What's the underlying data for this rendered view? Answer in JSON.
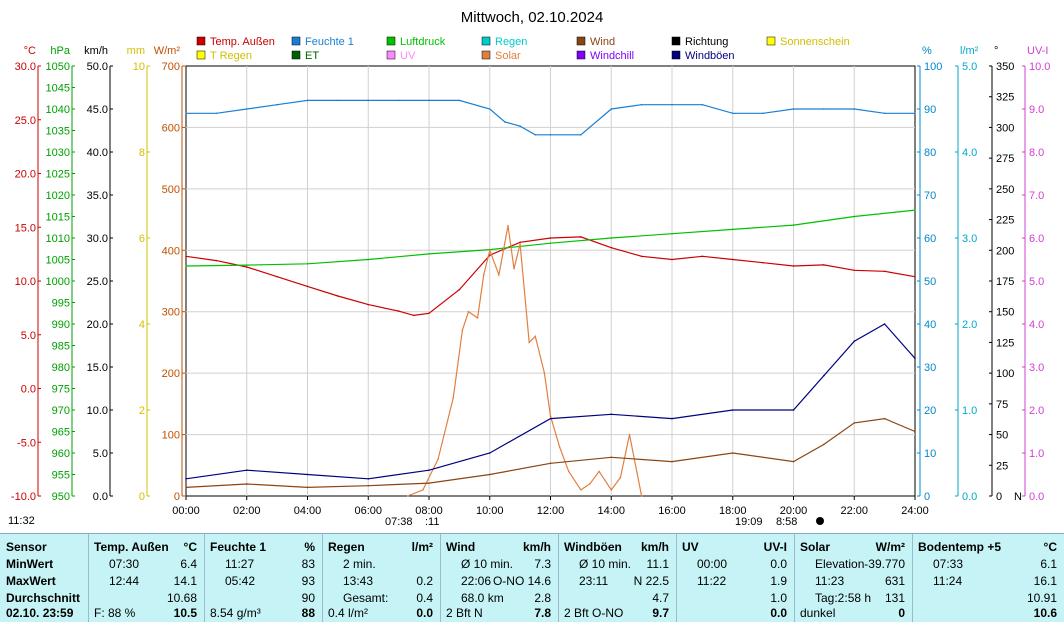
{
  "title": "Mittwoch, 02.10.2024",
  "chart_data": {
    "type": "line",
    "x_ticks": [
      "00:00",
      "02:00",
      "04:00",
      "06:00",
      "08:00",
      "10:00",
      "12:00",
      "14:00",
      "16:00",
      "18:00",
      "20:00",
      "22:00",
      "24:00"
    ],
    "axes_left": [
      {
        "unit": "°C",
        "color": "#cc0000",
        "ticks": [
          "30.0",
          "25.0",
          "20.0",
          "15.0",
          "10.0",
          "5.0",
          "0.0",
          "-5.0",
          "-10.0"
        ]
      },
      {
        "unit": "hPa",
        "color": "#00a000",
        "ticks": [
          "1050",
          "1045",
          "1040",
          "1035",
          "1030",
          "1025",
          "1020",
          "1015",
          "1010",
          "1005",
          "1000",
          "995",
          "990",
          "985",
          "980",
          "975",
          "970",
          "965",
          "960",
          "955",
          "950"
        ]
      },
      {
        "unit": "km/h",
        "color": "#000000",
        "ticks": [
          "50.0",
          "45.0",
          "40.0",
          "35.0",
          "30.0",
          "25.0",
          "20.0",
          "15.0",
          "10.0",
          "5.0",
          "0.0"
        ]
      },
      {
        "unit": "mm",
        "color": "#d4c000",
        "ticks": [
          "10",
          "8",
          "6",
          "4",
          "2",
          "0"
        ]
      },
      {
        "unit": "W/m²",
        "color": "#c05000",
        "ticks": [
          "700",
          "600",
          "500",
          "400",
          "300",
          "200",
          "100",
          "0"
        ]
      }
    ],
    "axes_right": [
      {
        "unit": "%",
        "color": "#0088cc",
        "ticks": [
          "100",
          "90",
          "80",
          "70",
          "60",
          "50",
          "40",
          "30",
          "20",
          "10",
          "0"
        ]
      },
      {
        "unit": "l/m²",
        "color": "#00aacc",
        "ticks": [
          "5.0",
          "4.0",
          "3.0",
          "2.0",
          "1.0",
          "0.0"
        ]
      },
      {
        "unit": "°",
        "color": "#000000",
        "ticks": [
          "350",
          "325",
          "300",
          "275",
          "250",
          "225",
          "200",
          "175",
          "150",
          "125",
          "100",
          "75",
          "50",
          "25",
          "0"
        ],
        "bottom_label": "N"
      },
      {
        "unit": "UV-I",
        "color": "#d040d0",
        "ticks": [
          "10.0",
          "9.0",
          "8.0",
          "7.0",
          "6.0",
          "5.0",
          "4.0",
          "3.0",
          "2.0",
          "1.0",
          "0.0"
        ]
      }
    ],
    "legend": [
      {
        "name": "Temp. Außen",
        "color": "#cc0000"
      },
      {
        "name": "Feuchte 1",
        "color": "#1a7fd4"
      },
      {
        "name": "Luftdruck",
        "color": "#00c000"
      },
      {
        "name": "Regen",
        "color": "#00cccc"
      },
      {
        "name": "Wind",
        "color": "#8b4513"
      },
      {
        "name": "Richtung",
        "color": "#000000"
      },
      {
        "name": "Sonnenschein",
        "color": "#ffff00"
      },
      {
        "name": "T Regen",
        "color": "#ffff00"
      },
      {
        "name": "ET",
        "color": "#006000"
      },
      {
        "name": "UV",
        "color": "#ff88ff"
      },
      {
        "name": "Solar",
        "color": "#e08040"
      },
      {
        "name": "Windchill",
        "color": "#8000ff"
      },
      {
        "name": "Windböen",
        "color": "#000080"
      }
    ],
    "series": [
      {
        "name": "Temp. Außen",
        "axis": "°C",
        "x": [
          0,
          1,
          2,
          3,
          4,
          5,
          6,
          7,
          7.5,
          8,
          9,
          10,
          11,
          12,
          13,
          14,
          15,
          16,
          17,
          18,
          19,
          20,
          21,
          22,
          23,
          24
        ],
        "values": [
          12.3,
          11.9,
          11.3,
          10.4,
          9.5,
          8.6,
          7.8,
          7.2,
          6.8,
          7.0,
          9.2,
          12.4,
          13.6,
          14.0,
          14.1,
          13.1,
          12.3,
          12.0,
          12.3,
          12.0,
          11.7,
          11.4,
          11.5,
          11.0,
          10.9,
          10.4
        ]
      },
      {
        "name": "Feuchte 1",
        "axis": "%",
        "x": [
          0,
          1,
          2,
          3,
          4,
          5,
          6,
          7,
          8,
          9,
          10,
          10.5,
          11,
          11.5,
          12,
          13,
          14,
          15,
          16,
          17,
          18,
          19,
          20,
          21,
          22,
          23,
          24
        ],
        "values": [
          89,
          89,
          90,
          91,
          92,
          92,
          92,
          92,
          92,
          92,
          90,
          87,
          86,
          84,
          84,
          84,
          90,
          91,
          91,
          91,
          89,
          89,
          90,
          90,
          90,
          89,
          89
        ]
      },
      {
        "name": "Luftdruck",
        "axis": "hPa",
        "x": [
          0,
          2,
          4,
          6,
          8,
          10,
          12,
          14,
          16,
          18,
          20,
          22,
          24
        ],
        "values": [
          1003.5,
          1003.7,
          1004,
          1005,
          1006.3,
          1007.3,
          1008.8,
          1010,
          1011,
          1012,
          1013,
          1015,
          1016.5
        ]
      },
      {
        "name": "Solar",
        "axis": "W/m²",
        "x": [
          7.3,
          7.8,
          8.3,
          8.8,
          9.1,
          9.3,
          9.6,
          9.8,
          10.0,
          10.3,
          10.6,
          10.8,
          11.0,
          11.3,
          11.5,
          11.8,
          12.0,
          12.3,
          12.6,
          13.0,
          13.3,
          13.6,
          14.0,
          14.3,
          14.6,
          15.0
        ],
        "values": [
          0,
          10,
          60,
          160,
          270,
          300,
          290,
          360,
          400,
          360,
          440,
          370,
          410,
          250,
          260,
          200,
          130,
          80,
          40,
          10,
          20,
          40,
          10,
          30,
          100,
          0
        ]
      },
      {
        "name": "Wind",
        "axis": "km/h",
        "x": [
          0,
          2,
          4,
          6,
          8,
          10,
          12,
          14,
          16,
          18,
          20,
          21,
          22,
          23,
          24
        ],
        "values": [
          1.0,
          1.4,
          1.0,
          1.2,
          1.5,
          2.5,
          3.8,
          4.5,
          4.0,
          5.0,
          4.0,
          6.0,
          8.5,
          9.0,
          7.5
        ]
      },
      {
        "name": "Windböen",
        "axis": "km/h",
        "x": [
          0,
          2,
          4,
          6,
          8,
          10,
          12,
          14,
          16,
          18,
          20,
          21,
          22,
          23,
          24
        ],
        "values": [
          2.0,
          3.0,
          2.5,
          2.0,
          3.0,
          5.0,
          9.0,
          9.5,
          9.0,
          10.0,
          10.0,
          14.0,
          18.0,
          20.0,
          16.0
        ]
      }
    ]
  },
  "summary": {
    "row_labels": [
      "Sensor",
      "MinWert",
      "MaxWert",
      "Durchschnitt",
      "02.10. 23:59"
    ],
    "columns": [
      {
        "name": "Temp. Außen",
        "unit": "°C",
        "rows": [
          [
            "07:30",
            "6.4"
          ],
          [
            "12:44",
            "14.1"
          ],
          [
            "",
            "10.68"
          ],
          [
            "F: 88 %",
            "10.5"
          ]
        ]
      },
      {
        "name": "Feuchte 1",
        "unit": "%",
        "rows": [
          [
            "11:27",
            "83"
          ],
          [
            "05:42",
            "93"
          ],
          [
            "",
            "90"
          ],
          [
            "8.54 g/m³",
            "88"
          ]
        ]
      },
      {
        "name": "Regen",
        "unit": "l/m²",
        "rows": [
          [
            "2 min.",
            ""
          ],
          [
            "13:43",
            "0.2"
          ],
          [
            "Gesamt:",
            "0.4"
          ],
          [
            "0.4 l/m²",
            "0.0"
          ]
        ]
      },
      {
        "name": "Wind",
        "unit": "km/h",
        "rows": [
          [
            "Ø 10 min.",
            "7.3"
          ],
          [
            "22:06",
            "O-NO 14.6"
          ],
          [
            "68.0 km",
            "2.8"
          ],
          [
            "2 Bft N",
            "7.8"
          ]
        ]
      },
      {
        "name": "Windböen",
        "unit": "km/h",
        "rows": [
          [
            "Ø 10 min.",
            "11.1"
          ],
          [
            "23:11",
            "N 22.5"
          ],
          [
            "",
            "4.7"
          ],
          [
            "2 Bft O-NO",
            "9.7"
          ]
        ]
      },
      {
        "name": "UV",
        "unit": "UV-I",
        "rows": [
          [
            "00:00",
            "0.0"
          ],
          [
            "11:22",
            "1.9"
          ],
          [
            "",
            "1.0"
          ],
          [
            "",
            "0.0"
          ]
        ]
      },
      {
        "name": "Solar",
        "unit": "W/m²",
        "rows": [
          [
            "Elevation",
            "-39.770"
          ],
          [
            "11:23",
            "631"
          ],
          [
            "Tag:2:58 h",
            "131"
          ],
          [
            "dunkel",
            "0"
          ]
        ]
      },
      {
        "name": "Bodentemp +5",
        "unit": "°C",
        "rows": [
          [
            "07:33",
            "6.1"
          ],
          [
            "11:24",
            "16.1"
          ],
          [
            "",
            "10.91"
          ],
          [
            "",
            "10.6"
          ]
        ]
      }
    ]
  },
  "time_marks": {
    "left": "11:32",
    "sunrise": "07:38",
    "sunrise_end": ":11",
    "sunset": "19:09",
    "sunset_end": "8:58"
  }
}
